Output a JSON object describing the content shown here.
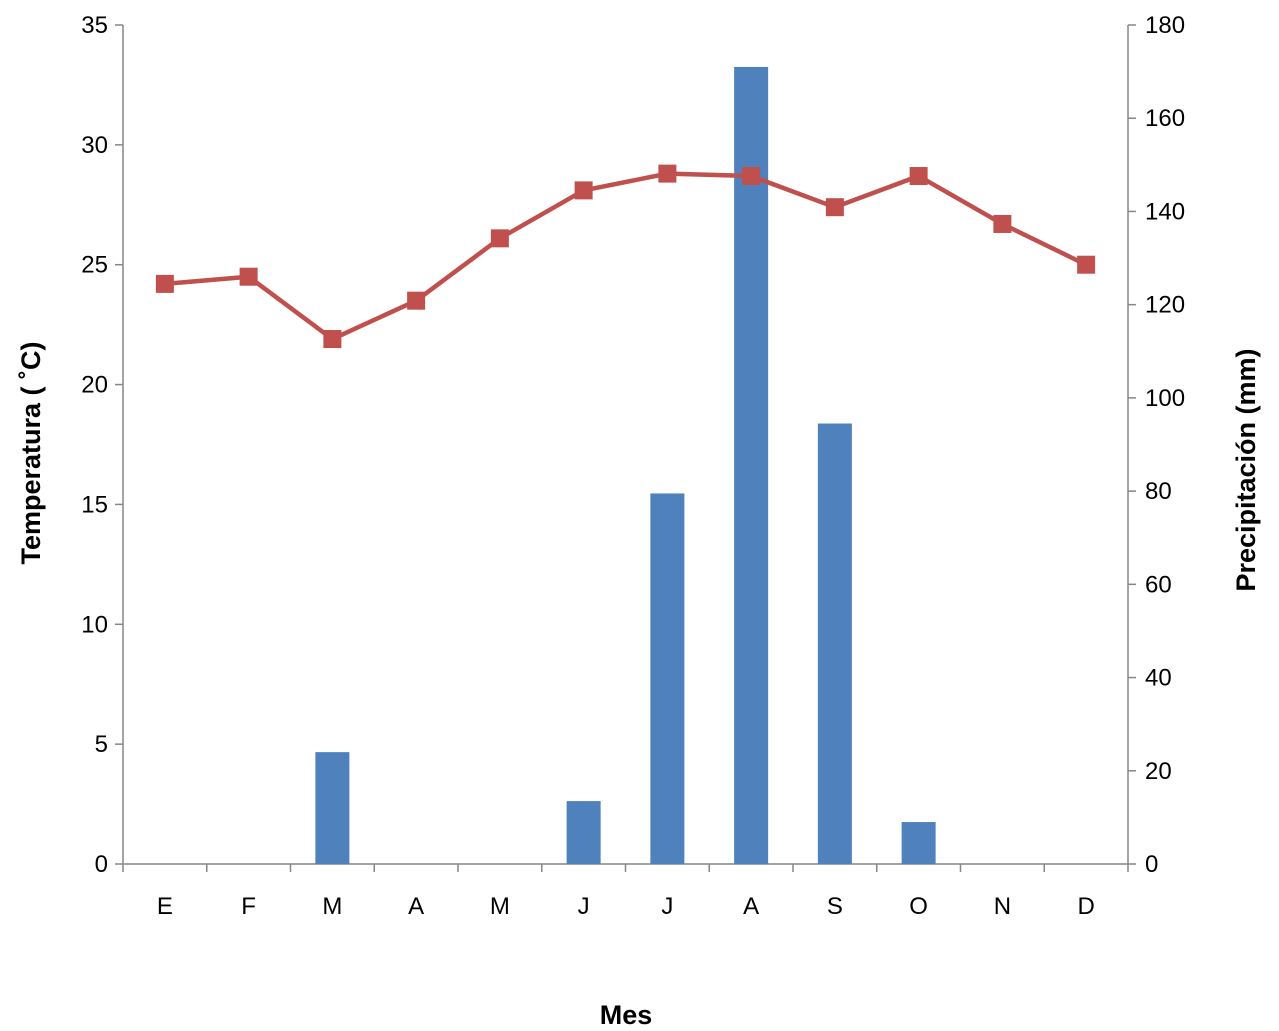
{
  "chart_data": {
    "type": "bar+line",
    "categories": [
      "E",
      "F",
      "M",
      "A",
      "M",
      "J",
      "J",
      "A",
      "S",
      "O",
      "N",
      "D"
    ],
    "series": [
      {
        "type": "bar",
        "axis": "right",
        "color": "#4f81bd",
        "values": [
          0,
          0,
          24,
          0,
          0,
          13.5,
          79.5,
          171,
          94.5,
          9,
          0,
          0
        ]
      },
      {
        "type": "line",
        "axis": "left",
        "color": "#c0504d",
        "marker": "square",
        "values": [
          24.2,
          24.5,
          21.9,
          23.5,
          26.1,
          28.1,
          28.8,
          28.7,
          27.4,
          28.7,
          26.7,
          25.0
        ]
      }
    ],
    "xlabel": "Mes",
    "ylabel_left": "Temperatura ( ˚C)",
    "ylabel_right": "Precipitación (mm)",
    "ylim_left": [
      0,
      35
    ],
    "ylim_right": [
      0,
      180
    ],
    "yticks_left": [
      "0",
      "5",
      "10",
      "15",
      "20",
      "25",
      "30",
      "35"
    ],
    "yticks_right": [
      "0",
      "20",
      "40",
      "60",
      "80",
      "100",
      "120",
      "140",
      "160",
      "180"
    ],
    "grid": false,
    "legend": "none"
  }
}
